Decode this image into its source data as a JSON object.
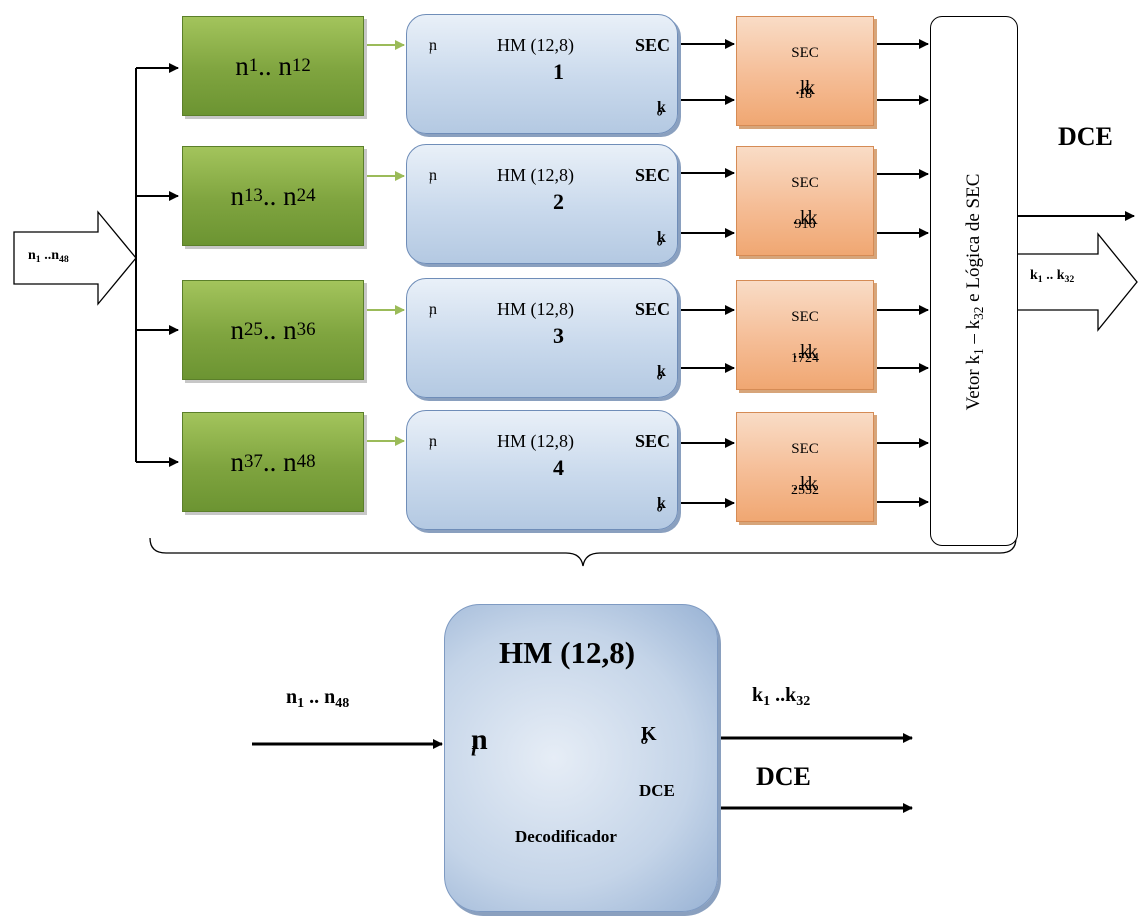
{
  "top": {
    "input_label": {
      "base": "n",
      "sub": "1",
      "mid": " ..n",
      "sub2": "48"
    },
    "groups": [
      {
        "range": {
          "a": "n",
          "a_sub": "1",
          "sep": " .. n",
          "b_sub": "12"
        },
        "hm_ni": "n",
        "hm_ni_sub": "i",
        "hm_title": "HM (12,8)",
        "hm_sec": "SEC",
        "hm_num": "1",
        "hm_ko": "k",
        "hm_ko_sub": "o",
        "sec_label": "SEC",
        "k_range": {
          "a": "k",
          "a_sub": "1",
          "sep": " ..k",
          "b_sub": "8"
        }
      },
      {
        "range": {
          "a": "n",
          "a_sub": "13",
          "sep": " .. n",
          "b_sub": "24"
        },
        "hm_ni": "n",
        "hm_ni_sub": "i",
        "hm_title": "HM (12,8)",
        "hm_sec": "SEC",
        "hm_num": "2",
        "hm_ko": "k",
        "hm_ko_sub": "o",
        "sec_label": "SEC",
        "k_range": {
          "a": "k",
          "a_sub": "9",
          "sep": " .. k",
          "b_sub": "16"
        }
      },
      {
        "range": {
          "a": "n",
          "a_sub": "25",
          "sep": " .. n",
          "b_sub": "36"
        },
        "hm_ni": "n",
        "hm_ni_sub": "i",
        "hm_title": "HM (12,8)",
        "hm_sec": "SEC",
        "hm_num": "3",
        "hm_ko": "k",
        "hm_ko_sub": "o",
        "sec_label": "SEC",
        "k_range": {
          "a": "k",
          "a_sub": "17",
          "sep": " .. k",
          "b_sub": "24"
        }
      },
      {
        "range": {
          "a": "n",
          "a_sub": "37",
          "sep": " .. n",
          "b_sub": "48"
        },
        "hm_ni": "n",
        "hm_ni_sub": "i",
        "hm_title": "HM (12,8)",
        "hm_sec": "SEC",
        "hm_num": "4",
        "hm_ko": "k",
        "hm_ko_sub": "o",
        "sec_label": "SEC",
        "k_range": {
          "a": "k",
          "a_sub": "25",
          "sep": " .. k",
          "b_sub": "32"
        }
      }
    ],
    "vector_label": {
      "pre": "Vetor k",
      "sub1": "1",
      "mid": " – k",
      "sub2": "32",
      "post": " e Lógica de SEC"
    },
    "dce_label": "DCE",
    "output_label": {
      "base": "k",
      "sub": "1",
      "mid": " .. k",
      "sub2": "32"
    }
  },
  "bottom": {
    "title": "HM (12,8)",
    "ni": "n",
    "ni_sub": "i",
    "ko": "K",
    "ko_sub": "o",
    "dce_inner": "DCE",
    "decoder": "Decodificador",
    "input_label": {
      "base": "n",
      "sub": "1",
      "mid": " .. n",
      "sub2": "48"
    },
    "output_label": {
      "base": "k",
      "sub": "1",
      "mid": " ..k",
      "sub2": "32"
    },
    "dce_out": "DCE"
  },
  "colors": {
    "green": "#7fa43f",
    "blue": "#c9d9ec",
    "orange": "#f5bd96",
    "arrow_green": "#9bbb59"
  }
}
